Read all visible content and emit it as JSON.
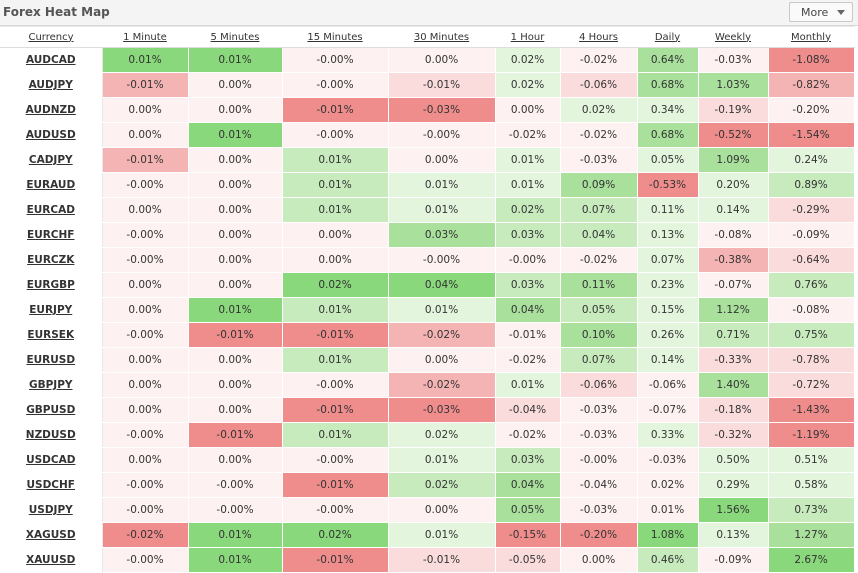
{
  "header": {
    "title": "Forex Heat Map",
    "more_label": "More"
  },
  "colors": {
    "neutral": "#fdf1f1",
    "green": [
      "#e3f5dd",
      "#c7ebbd",
      "#a8e09c",
      "#8ad87c"
    ],
    "red": [
      "#fbdcdc",
      "#f5b4b4",
      "#ef8d8d"
    ]
  },
  "columns": [
    "Currency",
    "1 Minute",
    "5 Minutes",
    "15 Minutes",
    "30 Minutes",
    "1 Hour",
    "4 Hours",
    "Daily",
    "Weekly",
    "Monthly"
  ],
  "rows": [
    {
      "pair": "AUDCAD",
      "values": [
        "0.01%",
        "0.01%",
        "-0.00%",
        "0.00%",
        "0.02%",
        "-0.02%",
        "0.64%",
        "-0.03%",
        "-1.08%"
      ],
      "levels": [
        4,
        4,
        0,
        0,
        1,
        0,
        3,
        0,
        -3
      ]
    },
    {
      "pair": "AUDJPY",
      "values": [
        "-0.01%",
        "0.00%",
        "-0.00%",
        "-0.01%",
        "0.02%",
        "-0.06%",
        "0.68%",
        "1.03%",
        "-0.82%"
      ],
      "levels": [
        -2,
        0,
        0,
        -1,
        1,
        -1,
        3,
        3,
        -2
      ]
    },
    {
      "pair": "AUDNZD",
      "values": [
        "0.00%",
        "0.00%",
        "-0.01%",
        "-0.03%",
        "0.00%",
        "0.02%",
        "0.34%",
        "-0.19%",
        "-0.20%"
      ],
      "levels": [
        0,
        0,
        -3,
        -3,
        0,
        1,
        1,
        -1,
        0
      ]
    },
    {
      "pair": "AUDUSD",
      "values": [
        "0.00%",
        "0.01%",
        "-0.00%",
        "-0.00%",
        "-0.02%",
        "-0.02%",
        "0.68%",
        "-0.52%",
        "-1.54%"
      ],
      "levels": [
        0,
        4,
        0,
        0,
        0,
        0,
        3,
        -3,
        -3
      ]
    },
    {
      "pair": "CADJPY",
      "values": [
        "-0.01%",
        "0.00%",
        "0.01%",
        "0.00%",
        "0.01%",
        "-0.03%",
        "0.05%",
        "1.09%",
        "0.24%"
      ],
      "levels": [
        -2,
        0,
        2,
        0,
        1,
        0,
        1,
        3,
        1
      ]
    },
    {
      "pair": "EURAUD",
      "values": [
        "-0.00%",
        "0.00%",
        "0.01%",
        "0.01%",
        "0.01%",
        "0.09%",
        "-0.53%",
        "0.20%",
        "0.89%"
      ],
      "levels": [
        0,
        0,
        2,
        1,
        1,
        3,
        -3,
        1,
        2
      ]
    },
    {
      "pair": "EURCAD",
      "values": [
        "0.00%",
        "0.00%",
        "0.01%",
        "0.01%",
        "0.02%",
        "0.07%",
        "0.11%",
        "0.14%",
        "-0.29%"
      ],
      "levels": [
        0,
        0,
        2,
        1,
        2,
        2,
        1,
        1,
        -1
      ]
    },
    {
      "pair": "EURCHF",
      "values": [
        "-0.00%",
        "0.00%",
        "0.00%",
        "0.03%",
        "0.03%",
        "0.04%",
        "0.13%",
        "-0.08%",
        "-0.09%"
      ],
      "levels": [
        0,
        0,
        0,
        3,
        2,
        2,
        1,
        0,
        0
      ]
    },
    {
      "pair": "EURCZK",
      "values": [
        "-0.00%",
        "0.00%",
        "0.00%",
        "-0.00%",
        "-0.00%",
        "-0.02%",
        "0.07%",
        "-0.38%",
        "-0.64%"
      ],
      "levels": [
        0,
        0,
        0,
        0,
        0,
        0,
        1,
        -2,
        -1
      ]
    },
    {
      "pair": "EURGBP",
      "values": [
        "0.00%",
        "0.00%",
        "0.02%",
        "0.04%",
        "0.03%",
        "0.11%",
        "0.23%",
        "-0.07%",
        "0.76%"
      ],
      "levels": [
        0,
        0,
        4,
        4,
        2,
        3,
        1,
        0,
        2
      ]
    },
    {
      "pair": "EURJPY",
      "values": [
        "0.00%",
        "0.01%",
        "0.01%",
        "0.01%",
        "0.04%",
        "0.05%",
        "0.15%",
        "1.12%",
        "-0.08%"
      ],
      "levels": [
        0,
        4,
        2,
        1,
        3,
        2,
        1,
        3,
        0
      ]
    },
    {
      "pair": "EURSEK",
      "values": [
        "-0.00%",
        "-0.01%",
        "-0.01%",
        "-0.02%",
        "-0.01%",
        "0.10%",
        "0.26%",
        "0.71%",
        "0.75%"
      ],
      "levels": [
        0,
        -3,
        -3,
        -2,
        0,
        3,
        1,
        2,
        2
      ]
    },
    {
      "pair": "EURUSD",
      "values": [
        "0.00%",
        "0.00%",
        "0.01%",
        "0.00%",
        "-0.02%",
        "0.07%",
        "0.14%",
        "-0.33%",
        "-0.78%"
      ],
      "levels": [
        0,
        0,
        2,
        0,
        0,
        2,
        1,
        -1,
        -1
      ]
    },
    {
      "pair": "GBPJPY",
      "values": [
        "0.00%",
        "0.00%",
        "-0.00%",
        "-0.02%",
        "0.01%",
        "-0.06%",
        "-0.06%",
        "1.40%",
        "-0.72%"
      ],
      "levels": [
        0,
        0,
        0,
        -2,
        1,
        -1,
        0,
        3,
        -1
      ]
    },
    {
      "pair": "GBPUSD",
      "values": [
        "0.00%",
        "0.00%",
        "-0.01%",
        "-0.03%",
        "-0.04%",
        "-0.03%",
        "-0.07%",
        "-0.18%",
        "-1.43%"
      ],
      "levels": [
        0,
        0,
        -3,
        -3,
        -1,
        0,
        0,
        -1,
        -3
      ]
    },
    {
      "pair": "NZDUSD",
      "values": [
        "-0.00%",
        "-0.01%",
        "0.01%",
        "0.02%",
        "-0.02%",
        "-0.03%",
        "0.33%",
        "-0.32%",
        "-1.19%"
      ],
      "levels": [
        0,
        -3,
        2,
        1,
        0,
        0,
        1,
        -1,
        -3
      ]
    },
    {
      "pair": "USDCAD",
      "values": [
        "0.00%",
        "0.00%",
        "-0.00%",
        "0.01%",
        "0.03%",
        "-0.00%",
        "-0.03%",
        "0.50%",
        "0.51%"
      ],
      "levels": [
        0,
        0,
        0,
        1,
        2,
        0,
        0,
        1,
        1
      ]
    },
    {
      "pair": "USDCHF",
      "values": [
        "-0.00%",
        "-0.00%",
        "-0.01%",
        "0.02%",
        "0.04%",
        "-0.04%",
        "0.02%",
        "0.29%",
        "0.58%"
      ],
      "levels": [
        0,
        0,
        -3,
        2,
        3,
        0,
        0,
        1,
        1
      ]
    },
    {
      "pair": "USDJPY",
      "values": [
        "-0.00%",
        "-0.00%",
        "-0.00%",
        "0.00%",
        "0.05%",
        "-0.03%",
        "0.01%",
        "1.56%",
        "0.73%"
      ],
      "levels": [
        0,
        0,
        0,
        0,
        3,
        0,
        0,
        4,
        2
      ]
    },
    {
      "pair": "XAGUSD",
      "values": [
        "-0.02%",
        "0.01%",
        "0.02%",
        "0.01%",
        "-0.15%",
        "-0.20%",
        "1.08%",
        "0.13%",
        "1.27%"
      ],
      "levels": [
        -3,
        4,
        4,
        1,
        -3,
        -3,
        4,
        1,
        3
      ]
    },
    {
      "pair": "XAUUSD",
      "values": [
        "-0.00%",
        "0.01%",
        "-0.01%",
        "-0.01%",
        "-0.05%",
        "0.00%",
        "0.46%",
        "-0.09%",
        "2.67%"
      ],
      "levels": [
        0,
        4,
        -3,
        -1,
        -1,
        0,
        2,
        0,
        4
      ]
    }
  ]
}
